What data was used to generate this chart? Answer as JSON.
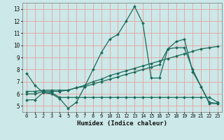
{
  "title": "",
  "xlabel": "Humidex (Indice chaleur)",
  "xlim": [
    -0.5,
    23.5
  ],
  "ylim": [
    4.5,
    13.5
  ],
  "xticks": [
    0,
    1,
    2,
    3,
    4,
    5,
    6,
    7,
    8,
    9,
    10,
    11,
    12,
    13,
    14,
    15,
    16,
    17,
    18,
    19,
    20,
    21,
    22,
    23
  ],
  "yticks": [
    5,
    6,
    7,
    8,
    9,
    10,
    11,
    12,
    13
  ],
  "background_color": "#cce8e8",
  "grid_color": "#e8a0a0",
  "line_color": "#1a6a5a",
  "lines": [
    {
      "x": [
        0,
        1,
        2,
        3,
        4,
        5,
        6,
        7,
        8,
        9,
        10,
        11,
        12,
        13,
        14,
        15,
        16,
        17,
        18,
        19,
        20,
        21,
        22,
        23
      ],
      "y": [
        7.7,
        6.7,
        6.1,
        6.0,
        5.6,
        4.8,
        5.3,
        6.6,
        8.0,
        9.4,
        10.5,
        10.9,
        12.0,
        13.2,
        11.8,
        7.3,
        7.3,
        9.7,
        10.3,
        10.5,
        7.8,
        6.6,
        5.2,
        5.2
      ]
    },
    {
      "x": [
        0,
        1,
        2,
        3,
        4,
        5,
        6,
        7,
        8,
        9,
        10,
        11,
        12,
        13,
        14,
        15,
        16,
        17,
        18,
        19,
        20,
        21,
        22,
        23
      ],
      "y": [
        5.5,
        5.5,
        6.1,
        6.1,
        5.7,
        5.7,
        5.7,
        5.7,
        5.7,
        5.7,
        5.7,
        5.7,
        5.7,
        5.7,
        5.7,
        5.7,
        5.7,
        5.7,
        5.7,
        5.7,
        5.7,
        5.7,
        5.7,
        5.3
      ]
    },
    {
      "x": [
        0,
        1,
        2,
        3,
        4,
        5,
        6,
        7,
        8,
        9,
        10,
        11,
        12,
        13,
        14,
        15,
        16,
        17,
        18,
        19,
        20,
        21,
        22,
        23
      ],
      "y": [
        6.0,
        6.0,
        6.2,
        6.2,
        6.2,
        6.3,
        6.5,
        6.7,
        7.0,
        7.2,
        7.5,
        7.7,
        7.9,
        8.1,
        8.3,
        8.5,
        8.7,
        8.9,
        9.1,
        9.3,
        9.5,
        9.7,
        9.8,
        9.9
      ]
    },
    {
      "x": [
        0,
        1,
        2,
        3,
        4,
        5,
        6,
        7,
        8,
        9,
        10,
        11,
        12,
        13,
        14,
        15,
        16,
        17,
        18,
        19,
        20,
        21,
        22,
        23
      ],
      "y": [
        6.2,
        6.2,
        6.3,
        6.3,
        6.3,
        6.3,
        6.5,
        6.6,
        6.8,
        7.0,
        7.2,
        7.4,
        7.6,
        7.8,
        8.0,
        8.2,
        8.4,
        9.7,
        9.8,
        9.8,
        8.0,
        6.6,
        5.3,
        5.2
      ]
    }
  ]
}
